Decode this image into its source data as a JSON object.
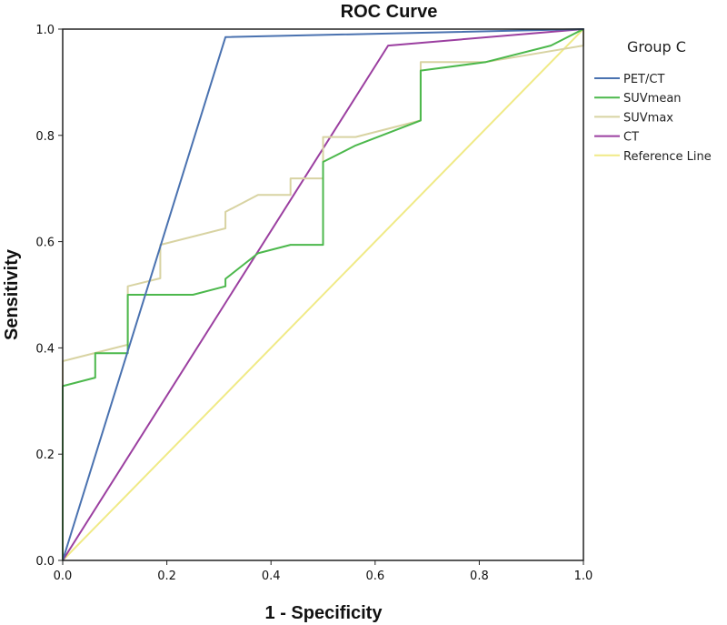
{
  "chart_data": {
    "type": "line",
    "title": "ROC Curve",
    "xlabel": "1 - Specificity",
    "ylabel": "Sensitivity",
    "xlim": [
      0,
      1
    ],
    "ylim": [
      0,
      1
    ],
    "x_ticks": [
      "0.0",
      "0.2",
      "0.4",
      "0.6",
      "0.8",
      "1.0"
    ],
    "y_ticks": [
      "0.0",
      "0.2",
      "0.4",
      "0.6",
      "0.8",
      "1.0"
    ],
    "grid": false,
    "legend": {
      "title": "Group C",
      "placement": "right"
    },
    "series": [
      {
        "name": "PET/CT",
        "color": "#4a72b0",
        "points": [
          [
            0,
            0
          ],
          [
            0.3125,
            0.985
          ],
          [
            1.0,
            1.0
          ]
        ]
      },
      {
        "name": "SUVmean",
        "color": "#4cb84c",
        "points": [
          [
            0,
            0
          ],
          [
            0,
            0.328
          ],
          [
            0.0625,
            0.344
          ],
          [
            0.0625,
            0.39
          ],
          [
            0.125,
            0.39
          ],
          [
            0.125,
            0.5
          ],
          [
            0.25,
            0.5
          ],
          [
            0.3125,
            0.516
          ],
          [
            0.3125,
            0.53
          ],
          [
            0.375,
            0.578
          ],
          [
            0.4375,
            0.594
          ],
          [
            0.5,
            0.594
          ],
          [
            0.5,
            0.75
          ],
          [
            0.5625,
            0.781
          ],
          [
            0.6875,
            0.828
          ],
          [
            0.6875,
            0.922
          ],
          [
            0.8125,
            0.938
          ],
          [
            0.9375,
            0.969
          ],
          [
            1.0,
            1.0
          ]
        ]
      },
      {
        "name": "SUVmax",
        "color": "#d8d3a2",
        "points": [
          [
            0,
            0
          ],
          [
            0,
            0.375
          ],
          [
            0.125,
            0.406
          ],
          [
            0.125,
            0.516
          ],
          [
            0.1875,
            0.531
          ],
          [
            0.1875,
            0.594
          ],
          [
            0.3125,
            0.625
          ],
          [
            0.3125,
            0.656
          ],
          [
            0.375,
            0.688
          ],
          [
            0.4375,
            0.688
          ],
          [
            0.4375,
            0.719
          ],
          [
            0.5,
            0.719
          ],
          [
            0.5,
            0.797
          ],
          [
            0.5625,
            0.797
          ],
          [
            0.6875,
            0.828
          ],
          [
            0.6875,
            0.938
          ],
          [
            0.8125,
            0.938
          ],
          [
            1.0,
            0.969
          ],
          [
            1.0,
            1.0
          ]
        ]
      },
      {
        "name": "CT",
        "color": "#9b3fa0",
        "points": [
          [
            0,
            0
          ],
          [
            0.625,
            0.969
          ],
          [
            1.0,
            1.0
          ]
        ]
      },
      {
        "name": "Reference Line",
        "color": "#f0ea86",
        "points": [
          [
            0,
            0
          ],
          [
            1.0,
            1.0
          ]
        ]
      }
    ]
  }
}
